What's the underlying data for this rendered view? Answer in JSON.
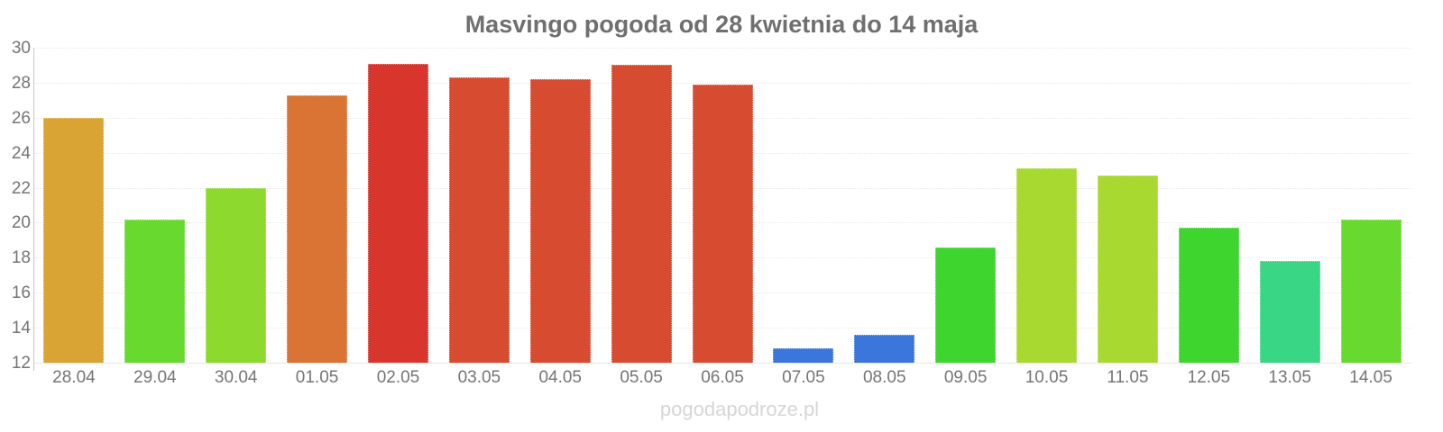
{
  "chart_data": {
    "type": "bar",
    "title": "Masvingo pogoda od 28 kwietnia do 14 maja",
    "categories": [
      "28.04",
      "29.04",
      "30.04",
      "01.05",
      "02.05",
      "03.05",
      "04.05",
      "05.05",
      "06.05",
      "07.05",
      "08.05",
      "09.05",
      "10.05",
      "11.05",
      "12.05",
      "13.05",
      "14.05"
    ],
    "values": [
      26.0,
      20.2,
      22.0,
      27.3,
      29.1,
      28.3,
      28.2,
      29.0,
      27.9,
      12.8,
      13.6,
      18.6,
      23.1,
      22.7,
      19.7,
      17.8,
      20.2
    ],
    "bar_colors": [
      "#d9a433",
      "#68d92e",
      "#8dd92e",
      "#d97434",
      "#d8352c",
      "#d74b31",
      "#d74b31",
      "#d74b31",
      "#d74b31",
      "#3a76db",
      "#3a76db",
      "#3ed52f",
      "#a8d930",
      "#a8d930",
      "#3ed52f",
      "#38d685",
      "#68d92e"
    ],
    "ylim": [
      12,
      30
    ],
    "yticks": [
      12,
      14,
      16,
      18,
      20,
      22,
      24,
      26,
      28,
      30
    ],
    "xlabel": "",
    "ylabel": "",
    "legend": "none",
    "grid": "horizontal dotted",
    "watermark": "pogodapodroze.pl",
    "colors": {
      "title": "#6f6f6f",
      "tick_labels": "#757575",
      "gridlines": "#e8e8e8",
      "axis_line": "#c9c9c9",
      "watermark": "#d6d6d6",
      "background": "#ffffff"
    }
  }
}
